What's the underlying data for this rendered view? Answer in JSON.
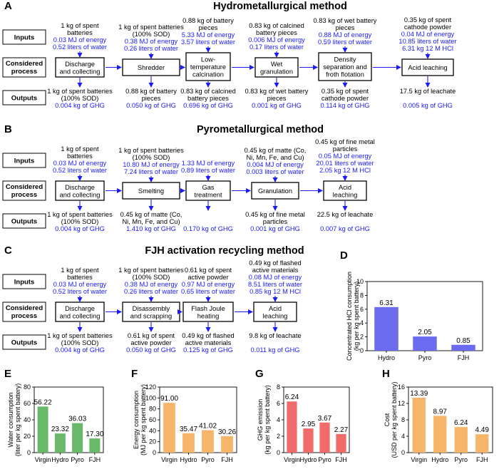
{
  "colors": {
    "blue": "#1a1aff",
    "hydro": "#6b6bf0",
    "green": "#6ab86a",
    "orange": "#f7b56a",
    "red": "#f26b6b"
  },
  "A": {
    "letter": "A",
    "title": "Hydrometallurgical method",
    "inputs_label": "Inputs",
    "process_label": [
      "Considered",
      "process"
    ],
    "outputs_label": "Outputs",
    "steps": [
      {
        "in": [
          "1 kg of spent",
          "batteries"
        ],
        "in_blue": [
          "0.03 MJ of energy",
          "0.52 liters of water"
        ],
        "proc": [
          "Discharge",
          "and collecting"
        ],
        "out": [
          "1 kg of spent batteries",
          "(100% SOD)"
        ],
        "out_blue": [
          "0.004 kg of GHG"
        ]
      },
      {
        "in": [
          "1 kg of spent batteries",
          "(100% SOD)"
        ],
        "in_blue": [
          "0.38 MJ of energy",
          "0.26 liters of water"
        ],
        "proc": [
          "Shredder"
        ],
        "out": [
          "0.88 kg of battery",
          "pieces"
        ],
        "out_blue": [
          "0.050 kg of GHG"
        ]
      },
      {
        "in": [
          "0.88 kg of battery",
          "pieces"
        ],
        "in_blue": [
          "5.33 MJ of energy",
          "3.57 liters of water"
        ],
        "proc": [
          "Low-",
          "temperature",
          "calcination"
        ],
        "out": [
          "0.83 kg of calcined",
          "battery pieces"
        ],
        "out_blue": [
          "0.696 kg of GHG"
        ]
      },
      {
        "in": [
          "0.83 kg of calcined",
          "battery pieces"
        ],
        "in_blue": [
          "0.006 MJ of energy",
          "0.17 liters of water"
        ],
        "proc": [
          "Wet",
          "granulation"
        ],
        "out": [
          "0.83 kg of wet battery",
          "pieces"
        ],
        "out_blue": [
          "0.001 kg of GHG"
        ]
      },
      {
        "in": [
          "0.83 kg of wet battery",
          "pieces"
        ],
        "in_blue": [
          "0.88 MJ of energy",
          "0.59 liters of water"
        ],
        "proc": [
          "Density",
          "separation and",
          "froth flotation"
        ],
        "out": [
          "0.35 kg of spent",
          "cathode powder"
        ],
        "out_blue": [
          "0.114 kg of GHG"
        ]
      },
      {
        "in": [
          "0.35 kg of spent",
          "cathode powder"
        ],
        "in_blue": [
          "0.04 MJ of energy",
          "10.85 liters of water",
          "6.31 kg 12 M HCl"
        ],
        "proc": [
          "Acid leaching"
        ],
        "out": [
          "17.5 kg of leachate"
        ],
        "out_blue": [
          "0.005 kg of GHG"
        ]
      }
    ]
  },
  "B": {
    "letter": "B",
    "title": "Pyrometallurgical method",
    "inputs_label": "Inputs",
    "process_label": [
      "Considered",
      "process"
    ],
    "outputs_label": "Outputs",
    "steps": [
      {
        "in": [
          "1 kg of spent",
          "batteries"
        ],
        "in_blue": [
          "0.03 MJ of energy",
          "0.52 liters of water"
        ],
        "proc": [
          "Discharge",
          "and collecting"
        ],
        "out": [
          "1 kg of spent batteries",
          "(100% SOD)"
        ],
        "out_blue": [
          "0.004 kg of GHG"
        ]
      },
      {
        "in": [
          "1 kg of spent batteries",
          "(100% SOD)"
        ],
        "in_blue": [
          "10.80 MJ of energy",
          "7.24 liters of water"
        ],
        "proc": [
          "Smelting"
        ],
        "out": [
          "0.45 kg of matte (Co,",
          "Ni, Mn, Fe, and Cu)"
        ],
        "out_blue": [
          "1.410 kg of GHG"
        ]
      },
      {
        "in": [],
        "in_blue": [
          "1.33 MJ of energy",
          "0.89 liters of water"
        ],
        "proc": [
          "Gas",
          "treatment"
        ],
        "out": [],
        "out_blue": [
          "0.170 kg of GHG"
        ]
      },
      {
        "in": [
          "0.45 kg of matte (Co,",
          "Ni, Mn, Fe, and Cu)"
        ],
        "in_blue": [
          "0.004 MJ of energy",
          "0.003 liters of water"
        ],
        "proc": [
          "Granulation"
        ],
        "out": [
          "0.45 kg of fine metal",
          "particles"
        ],
        "out_blue": [
          "0.001 kg of GHG"
        ]
      },
      {
        "in": [
          "0.45 kg of fine metal",
          "particles"
        ],
        "in_blue": [
          "0.05 MJ of energy",
          "20.01 liters of water",
          "2.05 kg 12 M HCl"
        ],
        "proc": [
          "Acid",
          "leaching"
        ],
        "out": [
          "22.5 kg of leachate"
        ],
        "out_blue": [
          "0.007 kg of GHG"
        ]
      }
    ]
  },
  "C": {
    "letter": "C",
    "title": "FJH activation recycling method",
    "inputs_label": "Inputs",
    "process_label": [
      "Considered",
      "process"
    ],
    "outputs_label": "Outputs",
    "steps": [
      {
        "in": [
          "1 kg of spent",
          "batteries"
        ],
        "in_blue": [
          "0.03 MJ of energy",
          "0.52 liters of water"
        ],
        "proc": [
          "Discharge",
          "and collecting"
        ],
        "out": [
          "1 kg of spent batteries",
          "(100% SOD)"
        ],
        "out_blue": [
          "0.004 kg of GHG"
        ]
      },
      {
        "in": [
          "1 kg of spent batteries",
          "(100% SOD)"
        ],
        "in_blue": [
          "0.38 MJ of energy",
          "0.26 liters of water"
        ],
        "proc": [
          "Disassembly",
          "and scrapping"
        ],
        "out": [
          "0.61 kg of spent",
          "active powder"
        ],
        "out_blue": [
          "0.050 kg of GHG"
        ]
      },
      {
        "in": [
          "0.61 kg of spent",
          "active powder"
        ],
        "in_blue": [
          "0.97 MJ of energy",
          "0.65 liters of water"
        ],
        "proc": [
          "Flash Joule",
          "heating"
        ],
        "out": [
          "0.49 kg of flashed",
          "active materials"
        ],
        "out_blue": [
          "0.125 kg of GHG"
        ]
      },
      {
        "in": [
          "0.49 kg of flashed",
          "active materials"
        ],
        "in_blue": [
          "0.08 MJ of energy",
          "8.51 liters of water",
          "0.85 kg 12 M HCl"
        ],
        "proc": [
          "Acid",
          "leaching"
        ],
        "out": [
          "9.8 kg of leachate"
        ],
        "out_blue": [
          "0.011 kg of GHG"
        ]
      }
    ]
  },
  "chart_data": [
    {
      "panel": "D",
      "type": "bar",
      "categories": [
        "Hydro",
        "Pyro",
        "FJH"
      ],
      "values": [
        6.31,
        2.05,
        0.85
      ],
      "value_labels": [
        "6.31",
        "2.05",
        "0.85"
      ],
      "ylabel": [
        "Concentrated HCl consumption",
        "(kg per kg spent battery)"
      ],
      "ylim": [
        0,
        10
      ],
      "yticks": [
        "0",
        "2",
        "4",
        "6",
        "8",
        "10"
      ],
      "color": "#6b6bf0"
    },
    {
      "panel": "E",
      "type": "bar",
      "categories": [
        "Virgin",
        "Hydro",
        "Pyro",
        "FJH"
      ],
      "values": [
        56.22,
        23.32,
        36.03,
        17.3
      ],
      "value_labels": [
        "56.22",
        "23.32",
        "36.03",
        "17.30"
      ],
      "ylabel": [
        "Water consumption",
        "(liter per kg spent battery)"
      ],
      "ylim": [
        0,
        80
      ],
      "yticks": [
        "0",
        "20",
        "40",
        "60",
        "80"
      ],
      "color": "#6ab86a"
    },
    {
      "panel": "F",
      "type": "bar",
      "categories": [
        "Virgin",
        "Hydro",
        "Pyro",
        "FJH"
      ],
      "values": [
        91.0,
        35.47,
        41.02,
        30.26
      ],
      "value_labels": [
        "91.00",
        "35.47",
        "41.02",
        "30.26"
      ],
      "ylabel": [
        "Energy consumption",
        "(MJ per kg spent battery)"
      ],
      "ylim": [
        0,
        120
      ],
      "yticks": [
        "0",
        "20",
        "40",
        "60",
        "80",
        "100",
        "120"
      ],
      "color": "#f7b56a"
    },
    {
      "panel": "G",
      "type": "bar",
      "categories": [
        "Virgin",
        "Hydro",
        "Pyro",
        "FJH"
      ],
      "values": [
        6.24,
        2.95,
        3.67,
        2.27
      ],
      "value_labels": [
        "6.24",
        "2.95",
        "3.67",
        "2.27"
      ],
      "ylabel": [
        "GHG emission",
        "(kg per kg spent battery)"
      ],
      "ylim": [
        0,
        8
      ],
      "yticks": [
        "0",
        "2",
        "4",
        "6",
        "8"
      ],
      "color": "#f26b6b"
    },
    {
      "panel": "H",
      "type": "bar",
      "categories": [
        "Virgin",
        "Hydro",
        "Pyro",
        "FJH"
      ],
      "values": [
        13.39,
        8.97,
        6.24,
        4.49
      ],
      "value_labels": [
        "13.39",
        "8.97",
        "6.24",
        "4.49"
      ],
      "ylabel": [
        "Cost",
        "(USD per kg spent battery)"
      ],
      "ylim": [
        0,
        16
      ],
      "yticks": [
        "0",
        "4",
        "8",
        "12",
        "16"
      ],
      "color": "#f7b56a"
    }
  ]
}
